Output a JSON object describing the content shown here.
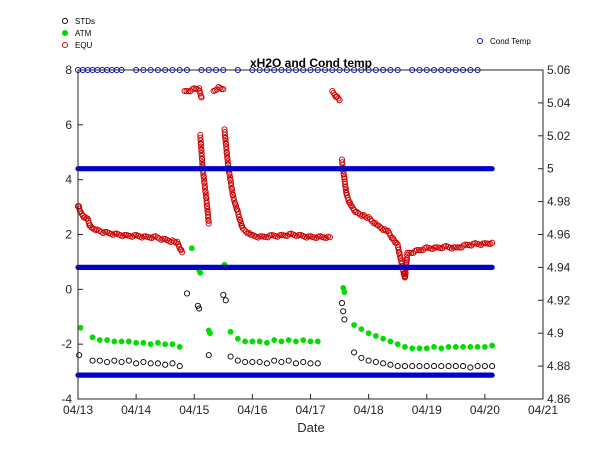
{
  "chart_data": {
    "type": "scatter",
    "title": "xH2O and Cond temp",
    "xlabel": "Date",
    "x_ticks": [
      "04/13",
      "04/14",
      "04/15",
      "04/16",
      "04/17",
      "04/18",
      "04/19",
      "04/20",
      "04/21"
    ],
    "xlim": [
      "04/13",
      "04/21"
    ],
    "left_axis": {
      "ylim": [
        -4,
        8
      ],
      "ticks": [
        "-4",
        "-2",
        "0",
        "2",
        "4",
        "6",
        "8"
      ]
    },
    "right_axis": {
      "ylim": [
        4.86,
        5.06
      ],
      "ticks": [
        "4.86",
        "4.88",
        "4.9",
        "4.92",
        "4.94",
        "4.96",
        "4.98",
        "5",
        "5.02",
        "5.04",
        "5.06"
      ]
    },
    "grid": false,
    "legend_left": {
      "placement": "top-left",
      "entries": [
        {
          "name": "STDs",
          "color": "#000000",
          "marker": "open-circle"
        },
        {
          "name": "ATM",
          "color": "#00dd00",
          "marker": "filled-circle"
        },
        {
          "name": "EQU",
          "color": "#cc0000",
          "marker": "open-circle"
        }
      ]
    },
    "legend_right": {
      "placement": "top-right",
      "entries": [
        {
          "name": "Cond Temp",
          "color": "#0000cc",
          "marker": "open-circle"
        }
      ]
    },
    "series": [
      {
        "name": "STDs",
        "axis": "left",
        "color": "#000000",
        "marker": "open",
        "points": [
          [
            "04/13 00:30",
            -2.4
          ],
          [
            "04/13 06:00",
            -2.6
          ],
          [
            "04/13 09:00",
            -2.6
          ],
          [
            "04/13 12:00",
            -2.65
          ],
          [
            "04/13 15:00",
            -2.6
          ],
          [
            "04/13 18:00",
            -2.65
          ],
          [
            "04/13 21:00",
            -2.6
          ],
          [
            "04/14 00:00",
            -2.7
          ],
          [
            "04/14 03:00",
            -2.65
          ],
          [
            "04/14 06:00",
            -2.7
          ],
          [
            "04/14 09:00",
            -2.7
          ],
          [
            "04/14 12:00",
            -2.75
          ],
          [
            "04/14 15:00",
            -2.7
          ],
          [
            "04/14 18:00",
            -2.8
          ],
          [
            "04/14 21:00",
            -0.15
          ],
          [
            "04/15 01:30",
            -0.6
          ],
          [
            "04/15 02:00",
            -0.7
          ],
          [
            "04/15 06:00",
            -2.4
          ],
          [
            "04/15 12:00",
            -0.2
          ],
          [
            "04/15 13:00",
            -0.4
          ],
          [
            "04/15 15:00",
            -2.45
          ],
          [
            "04/15 18:00",
            -2.6
          ],
          [
            "04/15 21:00",
            -2.65
          ],
          [
            "04/16 00:00",
            -2.65
          ],
          [
            "04/16 03:00",
            -2.65
          ],
          [
            "04/16 06:00",
            -2.7
          ],
          [
            "04/16 09:00",
            -2.6
          ],
          [
            "04/16 12:00",
            -2.65
          ],
          [
            "04/16 15:00",
            -2.6
          ],
          [
            "04/16 18:00",
            -2.7
          ],
          [
            "04/16 21:00",
            -2.65
          ],
          [
            "04/17 00:00",
            -2.7
          ],
          [
            "04/17 03:00",
            -2.7
          ],
          [
            "04/17 13:00",
            -0.5
          ],
          [
            "04/17 13:30",
            -0.8
          ],
          [
            "04/17 14:00",
            -1.1
          ],
          [
            "04/17 18:00",
            -2.3
          ],
          [
            "04/17 21:00",
            -2.5
          ],
          [
            "04/18 00:00",
            -2.6
          ],
          [
            "04/18 03:00",
            -2.65
          ],
          [
            "04/18 06:00",
            -2.7
          ],
          [
            "04/18 09:00",
            -2.75
          ],
          [
            "04/18 12:00",
            -2.8
          ],
          [
            "04/18 15:00",
            -2.8
          ],
          [
            "04/18 18:00",
            -2.8
          ],
          [
            "04/18 21:00",
            -2.8
          ],
          [
            "04/19 00:00",
            -2.8
          ],
          [
            "04/19 03:00",
            -2.8
          ],
          [
            "04/19 06:00",
            -2.8
          ],
          [
            "04/19 09:00",
            -2.8
          ],
          [
            "04/19 12:00",
            -2.8
          ],
          [
            "04/19 15:00",
            -2.8
          ],
          [
            "04/19 18:00",
            -2.85
          ],
          [
            "04/19 21:00",
            -2.8
          ],
          [
            "04/20 00:00",
            -2.8
          ],
          [
            "04/20 03:00",
            -2.8
          ]
        ]
      },
      {
        "name": "ATM",
        "axis": "left",
        "color": "#00dd00",
        "marker": "filled",
        "points": [
          [
            "04/13 01:00",
            -1.4
          ],
          [
            "04/13 06:00",
            -1.75
          ],
          [
            "04/13 09:00",
            -1.85
          ],
          [
            "04/13 12:00",
            -1.85
          ],
          [
            "04/13 15:00",
            -1.9
          ],
          [
            "04/13 18:00",
            -1.9
          ],
          [
            "04/13 21:00",
            -1.9
          ],
          [
            "04/14 00:00",
            -1.95
          ],
          [
            "04/14 03:00",
            -1.95
          ],
          [
            "04/14 06:00",
            -2.0
          ],
          [
            "04/14 09:00",
            -1.95
          ],
          [
            "04/14 12:00",
            -2.0
          ],
          [
            "04/14 15:00",
            -2.0
          ],
          [
            "04/14 18:00",
            -2.1
          ],
          [
            "04/14 23:00",
            1.5
          ],
          [
            "04/15 02:00",
            0.7
          ],
          [
            "04/15 02:30",
            0.6
          ],
          [
            "04/15 06:00",
            -1.5
          ],
          [
            "04/15 06:30",
            -1.6
          ],
          [
            "04/15 12:30",
            0.9
          ],
          [
            "04/15 13:00",
            0.8
          ],
          [
            "04/15 15:00",
            -1.55
          ],
          [
            "04/15 18:00",
            -1.8
          ],
          [
            "04/15 21:00",
            -1.9
          ],
          [
            "04/16 00:00",
            -1.9
          ],
          [
            "04/16 03:00",
            -1.9
          ],
          [
            "04/16 06:00",
            -1.95
          ],
          [
            "04/16 09:00",
            -1.85
          ],
          [
            "04/16 12:00",
            -1.9
          ],
          [
            "04/16 15:00",
            -1.85
          ],
          [
            "04/16 18:00",
            -1.9
          ],
          [
            "04/16 21:00",
            -1.85
          ],
          [
            "04/17 00:00",
            -1.9
          ],
          [
            "04/17 03:00",
            -1.9
          ],
          [
            "04/17 13:30",
            0.05
          ],
          [
            "04/17 14:00",
            -0.1
          ],
          [
            "04/17 18:00",
            -1.3
          ],
          [
            "04/17 21:00",
            -1.45
          ],
          [
            "04/18 00:00",
            -1.6
          ],
          [
            "04/18 03:00",
            -1.7
          ],
          [
            "04/18 06:00",
            -1.8
          ],
          [
            "04/18 09:00",
            -1.9
          ],
          [
            "04/18 12:00",
            -2.0
          ],
          [
            "04/18 15:00",
            -2.1
          ],
          [
            "04/18 18:00",
            -2.15
          ],
          [
            "04/18 21:00",
            -2.15
          ],
          [
            "04/19 00:00",
            -2.15
          ],
          [
            "04/19 03:00",
            -2.1
          ],
          [
            "04/19 06:00",
            -2.15
          ],
          [
            "04/19 09:00",
            -2.1
          ],
          [
            "04/19 12:00",
            -2.1
          ],
          [
            "04/19 15:00",
            -2.1
          ],
          [
            "04/19 18:00",
            -2.1
          ],
          [
            "04/19 21:00",
            -2.1
          ],
          [
            "04/20 00:00",
            -2.1
          ],
          [
            "04/20 03:00",
            -2.05
          ]
        ]
      },
      {
        "name": "EQU",
        "axis": "left",
        "color": "#cc0000",
        "marker": "open",
        "segments": [
          [
            [
              "04/13 00:00",
              3.0
            ],
            [
              "04/13 00:20",
              3.0
            ],
            [
              "04/13 01:00",
              2.8
            ],
            [
              "04/13 03:00",
              2.6
            ],
            [
              "04/13 04:00",
              2.55
            ],
            [
              "04/13 05:00",
              2.3
            ],
            [
              "04/13 06:00",
              2.2
            ],
            [
              "04/13 08:00",
              2.15
            ],
            [
              "04/13 12:00",
              2.05
            ],
            [
              "04/13 16:00",
              2.0
            ],
            [
              "04/13 20:00",
              1.95
            ],
            [
              "04/14 00:00",
              1.95
            ],
            [
              "04/14 04:00",
              1.9
            ],
            [
              "04/14 08:00",
              1.9
            ],
            [
              "04/14 12:00",
              1.8
            ],
            [
              "04/14 15:00",
              1.75
            ],
            [
              "04/14 17:00",
              1.7
            ],
            [
              "04/14 19:00",
              1.35
            ]
          ],
          [
            [
              "04/14 20:00",
              7.2
            ],
            [
              "04/15 00:00",
              7.3
            ],
            [
              "04/15 02:00",
              7.3
            ],
            [
              "04/15 03:00",
              7.0
            ]
          ],
          [
            [
              "04/15 02:30",
              5.6
            ],
            [
              "04/15 03:30",
              4.4
            ],
            [
              "04/15 05:00",
              3.3
            ],
            [
              "04/15 06:00",
              2.4
            ]
          ],
          [
            [
              "04/15 08:00",
              7.2
            ],
            [
              "04/15 10:00",
              7.35
            ],
            [
              "04/15 12:00",
              7.3
            ]
          ],
          [
            [
              "04/15 12:30",
              5.8
            ],
            [
              "04/15 14:00",
              4.5
            ],
            [
              "04/15 16:00",
              3.4
            ],
            [
              "04/15 18:00",
              2.8
            ],
            [
              "04/15 20:00",
              2.2
            ],
            [
              "04/16 00:00",
              1.95
            ],
            [
              "04/16 04:00",
              1.9
            ],
            [
              "04/16 08:00",
              1.95
            ],
            [
              "04/16 12:00",
              1.95
            ],
            [
              "04/16 16:00",
              2.0
            ],
            [
              "04/16 20:00",
              1.95
            ],
            [
              "04/17 00:00",
              1.9
            ],
            [
              "04/17 04:00",
              1.9
            ],
            [
              "04/17 08:00",
              1.9
            ]
          ],
          [
            [
              "04/17 09:00",
              7.2
            ],
            [
              "04/17 11:00",
              7.0
            ],
            [
              "04/17 12:00",
              6.9
            ]
          ],
          [
            [
              "04/17 13:00",
              4.7
            ],
            [
              "04/17 14:00",
              4.0
            ],
            [
              "04/17 15:00",
              3.4
            ],
            [
              "04/17 17:00",
              3.0
            ],
            [
              "04/17 19:00",
              2.8
            ],
            [
              "04/18 00:00",
              2.6
            ],
            [
              "04/18 04:00",
              2.3
            ],
            [
              "04/18 08:00",
              2.1
            ],
            [
              "04/18 12:00",
              1.6
            ],
            [
              "04/18 14:00",
              0.8
            ],
            [
              "04/18 15:00",
              0.4
            ],
            [
              "04/18 16:00",
              1.3
            ],
            [
              "04/18 20:00",
              1.4
            ],
            [
              "04/19 00:00",
              1.5
            ],
            [
              "04/19 04:00",
              1.5
            ],
            [
              "04/19 08:00",
              1.55
            ],
            [
              "04/19 12:00",
              1.5
            ],
            [
              "04/19 16:00",
              1.6
            ],
            [
              "04/19 20:00",
              1.65
            ],
            [
              "04/20 00:00",
              1.65
            ],
            [
              "04/20 03:00",
              1.7
            ]
          ]
        ]
      },
      {
        "name": "Cond Temp",
        "axis": "right",
        "color": "#0000cc",
        "marker": "open",
        "lines": [
          {
            "y": 5.0,
            "from": "04/13 00:00",
            "to": "04/20 03:00"
          },
          {
            "y": 4.94,
            "from": "04/13 00:00",
            "to": "04/20 03:00"
          },
          {
            "y": 4.8745,
            "from": "04/13 00:00",
            "to": "04/20 03:00"
          }
        ],
        "sparse": {
          "y": 5.06,
          "x": [
            "04/13 00:00",
            "04/13 02:00",
            "04/13 04:00",
            "04/13 06:00",
            "04/13 08:00",
            "04/13 10:00",
            "04/13 12:00",
            "04/13 14:00",
            "04/13 16:00",
            "04/13 18:00",
            "04/14 00:00",
            "04/14 03:00",
            "04/14 06:00",
            "04/14 09:00",
            "04/14 12:00",
            "04/14 15:00",
            "04/14 18:00",
            "04/14 21:00",
            "04/15 03:00",
            "04/15 06:00",
            "04/15 09:00",
            "04/15 12:00",
            "04/15 18:00",
            "04/16 00:00",
            "04/16 03:00",
            "04/16 06:00",
            "04/16 09:00",
            "04/16 12:00",
            "04/16 15:00",
            "04/16 18:00",
            "04/16 21:00",
            "04/17 00:00",
            "04/17 03:00",
            "04/17 06:00",
            "04/17 09:00",
            "04/17 12:00",
            "04/17 15:00",
            "04/17 18:00",
            "04/17 21:00",
            "04/18 00:00",
            "04/18 03:00",
            "04/18 06:00",
            "04/18 09:00",
            "04/18 12:00",
            "04/18 18:00",
            "04/18 21:00",
            "04/19 00:00",
            "04/19 03:00",
            "04/19 06:00",
            "04/19 09:00",
            "04/19 12:00",
            "04/19 15:00",
            "04/19 18:00",
            "04/19 21:00"
          ]
        }
      }
    ]
  }
}
